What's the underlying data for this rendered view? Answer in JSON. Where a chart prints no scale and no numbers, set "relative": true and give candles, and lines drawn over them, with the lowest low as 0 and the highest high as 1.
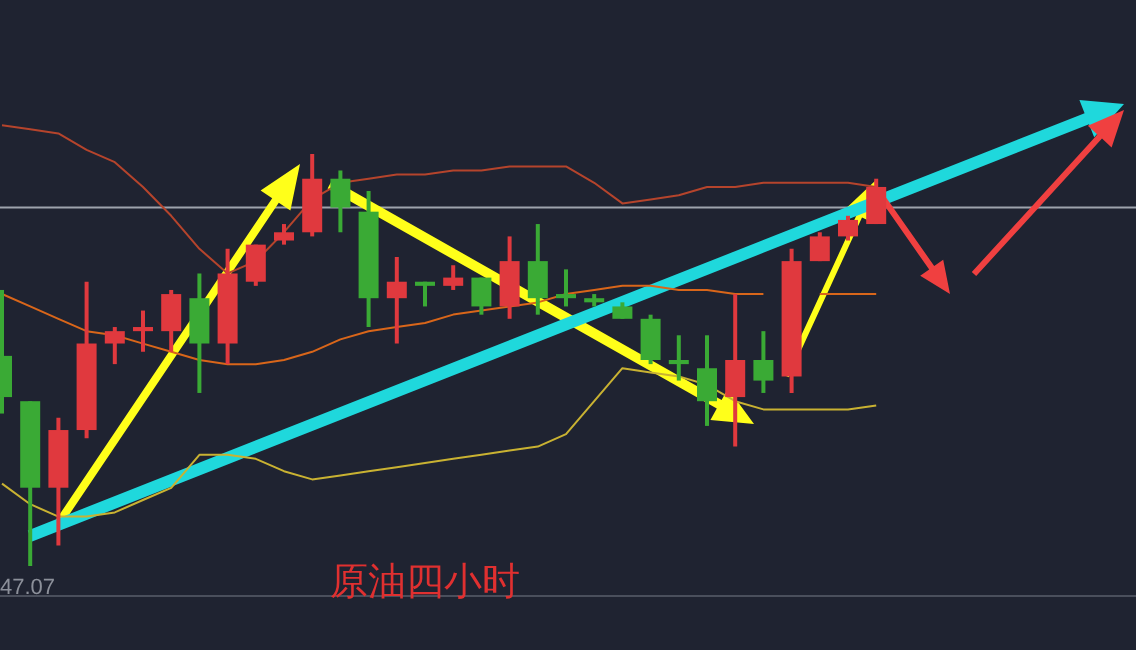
{
  "chart_data": {
    "type": "candlestick",
    "title": "原油四小时",
    "annotations": [
      "47.07"
    ],
    "relative": true,
    "grid": false,
    "categories": [
      null,
      null,
      null,
      null,
      null,
      null,
      null,
      null,
      null,
      null,
      null,
      null,
      null,
      null,
      null,
      null,
      null,
      null,
      null,
      null,
      null,
      null,
      null,
      null,
      null,
      null,
      null,
      null,
      null,
      null,
      null,
      null
    ],
    "ohlc": [
      [
        0.51,
        0.67,
        0.37,
        0.41
      ],
      [
        0.4,
        0.4,
        0.0,
        0.19
      ],
      [
        0.19,
        0.36,
        0.05,
        0.33
      ],
      [
        0.33,
        0.69,
        0.31,
        0.54
      ],
      [
        0.54,
        0.58,
        0.49,
        0.57
      ],
      [
        0.57,
        0.62,
        0.52,
        0.58
      ],
      [
        0.57,
        0.67,
        0.52,
        0.66
      ],
      [
        0.65,
        0.71,
        0.42,
        0.54
      ],
      [
        0.54,
        0.77,
        0.49,
        0.71
      ],
      [
        0.69,
        0.78,
        0.68,
        0.78
      ],
      [
        0.79,
        0.83,
        0.78,
        0.81
      ],
      [
        0.81,
        1.0,
        0.8,
        0.94
      ],
      [
        0.94,
        0.96,
        0.81,
        0.87
      ],
      [
        0.86,
        0.91,
        0.58,
        0.65
      ],
      [
        0.65,
        0.75,
        0.54,
        0.69
      ],
      [
        0.69,
        0.69,
        0.63,
        0.68
      ],
      [
        0.68,
        0.73,
        0.67,
        0.7
      ],
      [
        0.7,
        0.7,
        0.61,
        0.63
      ],
      [
        0.63,
        0.8,
        0.6,
        0.74
      ],
      [
        0.74,
        0.83,
        0.61,
        0.65
      ],
      [
        0.66,
        0.72,
        0.63,
        0.65
      ],
      [
        0.65,
        0.66,
        0.63,
        0.64
      ],
      [
        0.63,
        0.64,
        0.6,
        0.6
      ],
      [
        0.6,
        0.61,
        0.49,
        0.5
      ],
      [
        0.5,
        0.56,
        0.45,
        0.49
      ],
      [
        0.48,
        0.56,
        0.34,
        0.4
      ],
      [
        0.41,
        0.66,
        0.29,
        0.5
      ],
      [
        0.5,
        0.57,
        0.42,
        0.45
      ],
      [
        0.46,
        0.77,
        0.42,
        0.74
      ],
      [
        0.74,
        0.81,
        0.74,
        0.8
      ],
      [
        0.8,
        0.85,
        0.79,
        0.84
      ],
      [
        0.83,
        0.94,
        0.83,
        0.92
      ]
    ],
    "colors": [
      "#3aaa35",
      "#3aaa35",
      "#e0393e",
      "#e0393e",
      "#e0393e",
      "#e0393e",
      "#e0393e",
      "#3aaa35",
      "#e0393e",
      "#e0393e",
      "#e0393e",
      "#e0393e",
      "#3aaa35",
      "#3aaa35",
      "#e0393e",
      "#3aaa35",
      "#e0393e",
      "#3aaa35",
      "#e0393e",
      "#3aaa35",
      "#3aaa35",
      "#3aaa35",
      "#3aaa35",
      "#3aaa35",
      "#3aaa35",
      "#3aaa35",
      "#e0393e",
      "#3aaa35",
      "#e0393e",
      "#e0393e",
      "#e0393e",
      "#e0393e"
    ],
    "series": [
      {
        "type": "line",
        "color": "#b5442c",
        "values": [
          1.07,
          1.06,
          1.05,
          1.01,
          0.98,
          0.92,
          0.85,
          0.77,
          0.71,
          0.74,
          0.81,
          0.89,
          0.93,
          0.94,
          0.95,
          0.95,
          0.96,
          0.96,
          0.97,
          0.97,
          0.97,
          0.93,
          0.88,
          0.89,
          0.9,
          0.92,
          0.92,
          0.93,
          0.93,
          0.93,
          0.93,
          0.92
        ]
      },
      {
        "type": "line",
        "color": "#d9661a",
        "values": [
          0.66,
          0.63,
          0.6,
          0.57,
          0.56,
          0.54,
          0.52,
          0.5,
          0.49,
          0.49,
          0.5,
          0.52,
          0.55,
          0.57,
          0.58,
          0.59,
          0.61,
          0.62,
          0.63,
          0.64,
          0.66,
          0.67,
          0.68,
          0.68,
          0.67,
          0.67,
          0.66,
          0.66,
          null,
          0.66,
          0.66,
          0.66
        ]
      },
      {
        "type": "line",
        "color": "#c9b232",
        "values": [
          0.2,
          0.15,
          0.12,
          0.12,
          0.13,
          0.16,
          0.19,
          0.27,
          0.27,
          0.26,
          0.23,
          0.21,
          0.22,
          0.23,
          0.24,
          0.25,
          0.26,
          0.27,
          0.28,
          0.29,
          0.32,
          0.4,
          0.48,
          0.47,
          0.46,
          0.44,
          0.4,
          0.38,
          0.38,
          0.38,
          0.38,
          0.39
        ]
      }
    ],
    "ref_lines": [
      {
        "axis": "y",
        "value": 0.87,
        "color": "#9ea3ad"
      }
    ]
  }
}
